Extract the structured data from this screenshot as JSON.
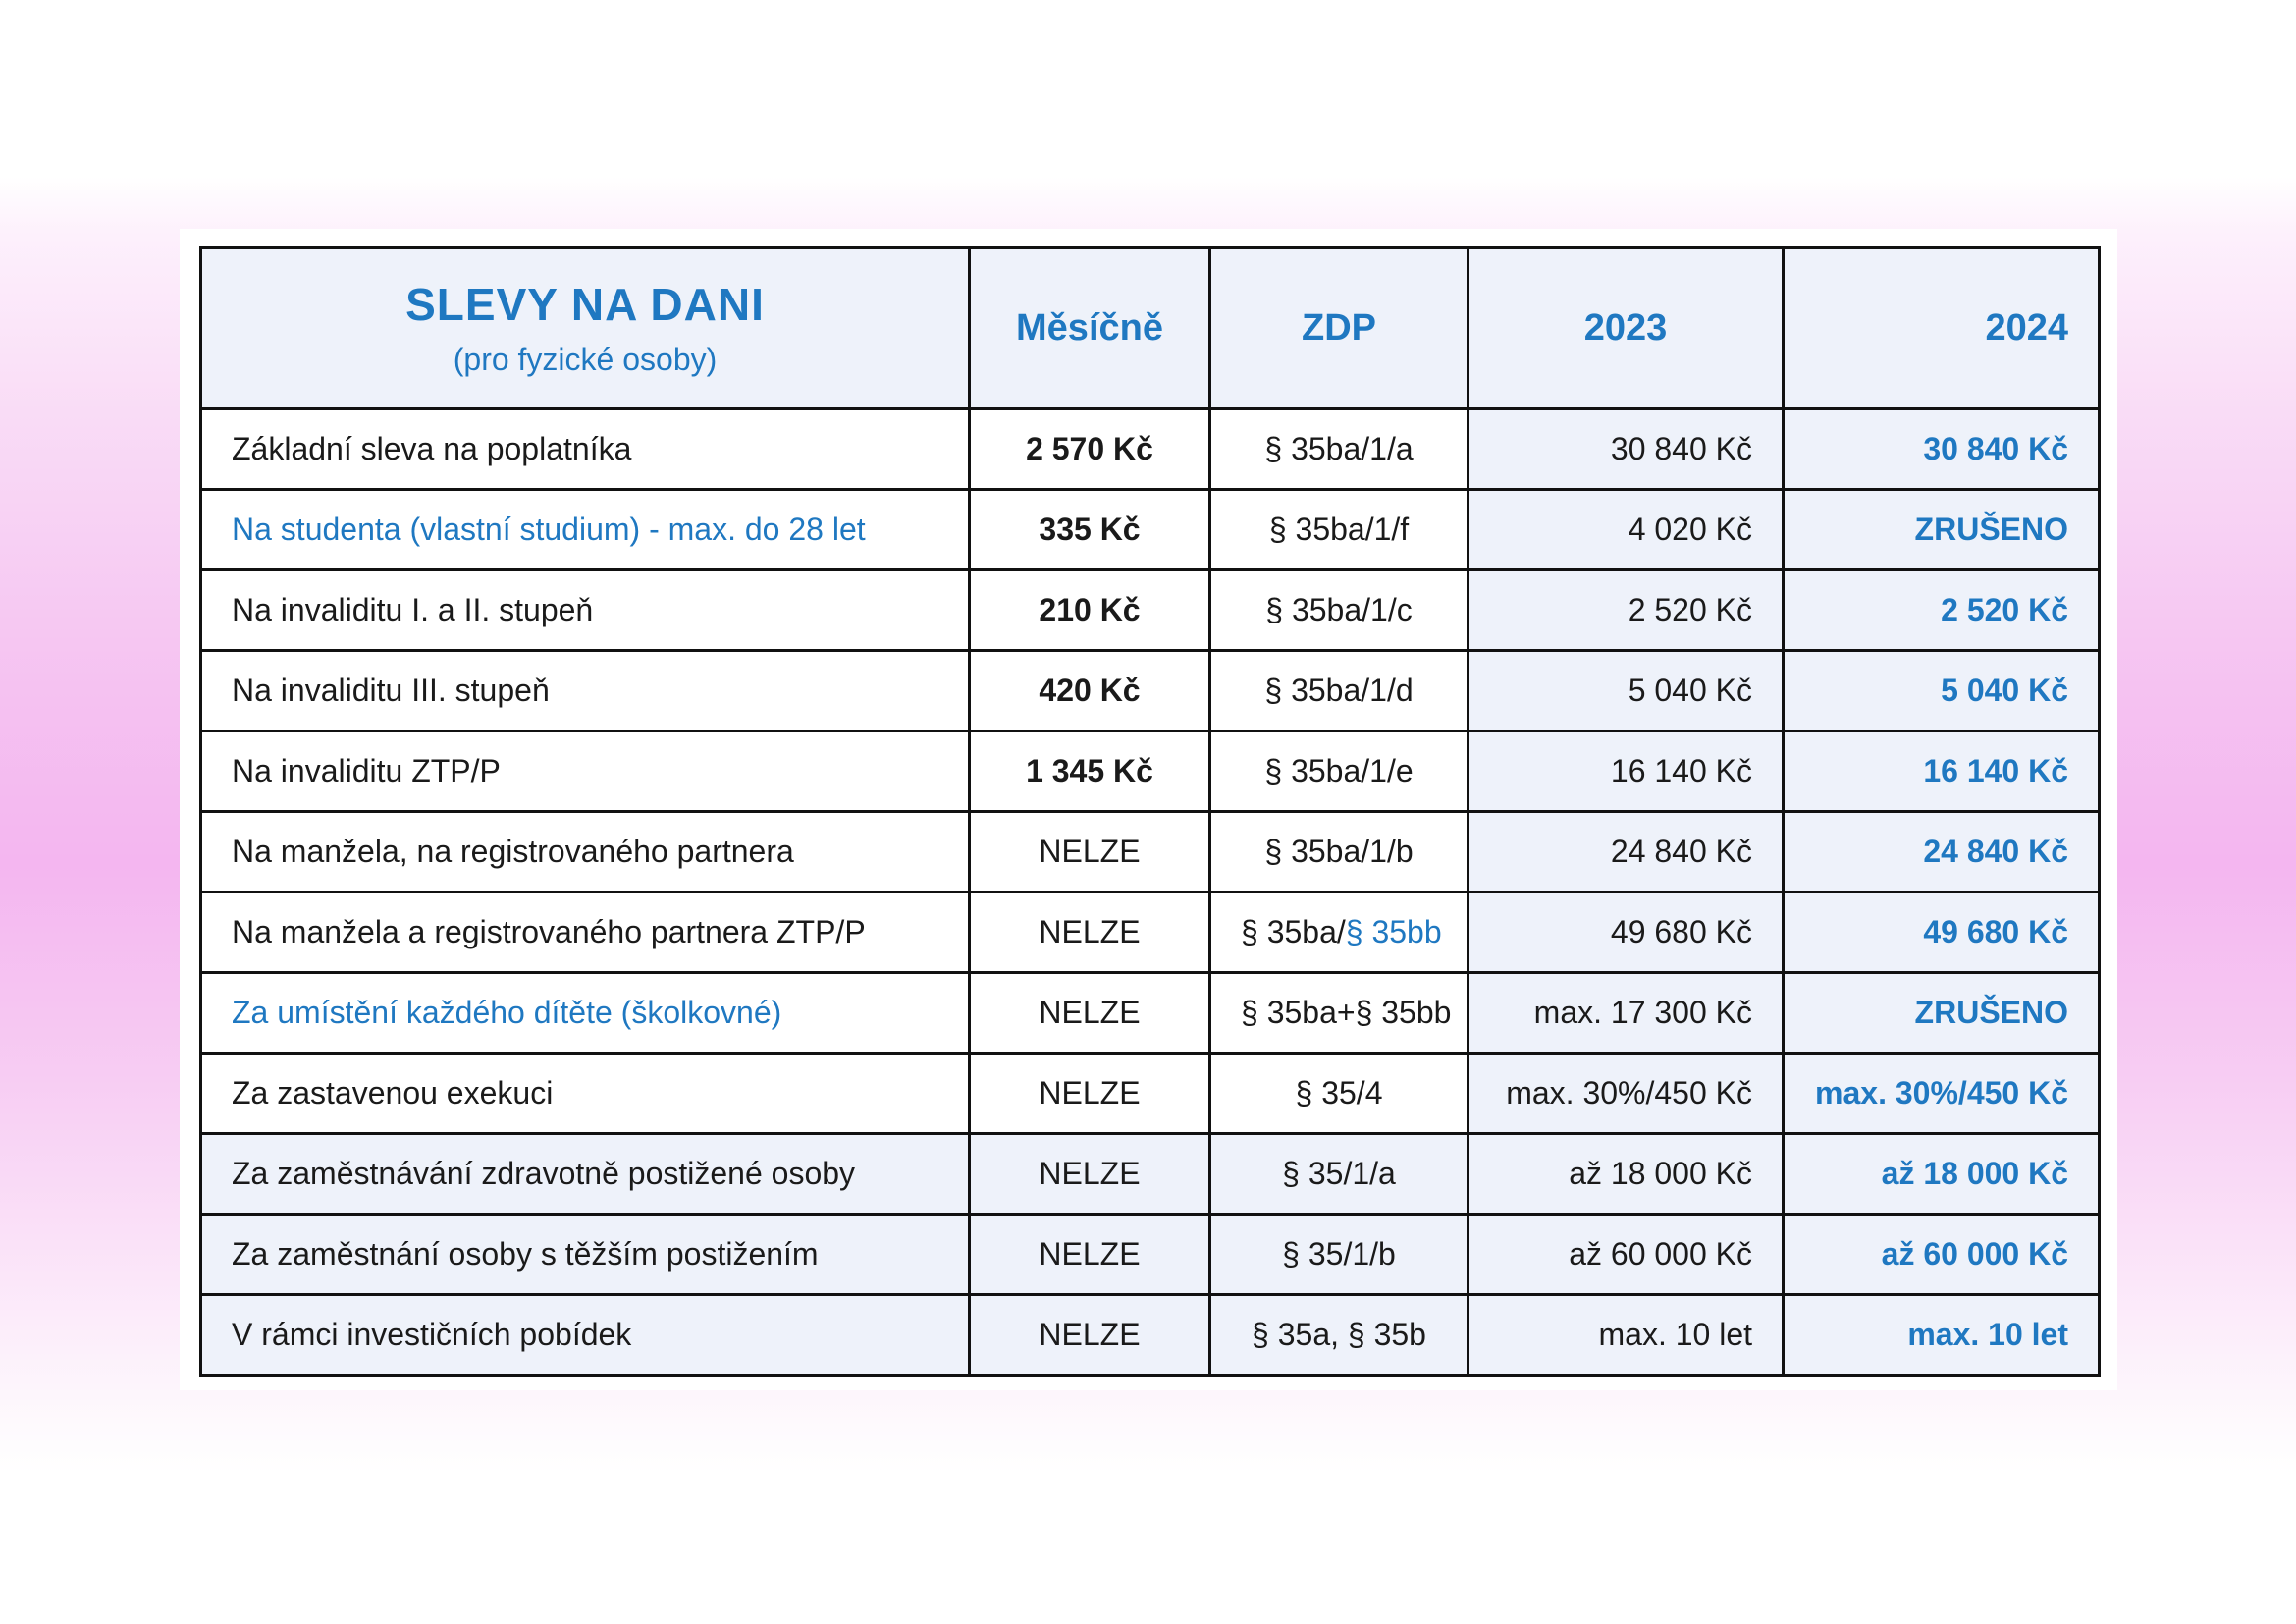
{
  "table": {
    "headers": {
      "title": "SLEVY NA DANI",
      "subtitle": "(pro fyzické osoby)",
      "monthly": "Měsíčně",
      "zdp": "ZDP",
      "y2023": "2023",
      "y2024": "2024"
    },
    "rows": [
      {
        "name": "Základní sleva na poplatníka",
        "monthly": "2 570 Kč",
        "zdp": "§ 35ba/1/a",
        "zdp_extra": "",
        "y2023": "30 840 Kč",
        "y2024": "30 840 Kč",
        "name_blue": false,
        "monthly_bold": true
      },
      {
        "name": "Na studenta (vlastní studium) - max. do 28 let",
        "monthly": "335 Kč",
        "zdp": "§ 35ba/1/f",
        "zdp_extra": "",
        "y2023": "4 020 Kč",
        "y2024": "ZRUŠENO",
        "name_blue": true,
        "monthly_bold": true
      },
      {
        "name": "Na invaliditu I. a II. stupeň",
        "monthly": "210 Kč",
        "zdp": "§ 35ba/1/c",
        "zdp_extra": "",
        "y2023": "2 520 Kč",
        "y2024": "2 520 Kč",
        "name_blue": false,
        "monthly_bold": true
      },
      {
        "name": "Na invaliditu III. stupeň",
        "monthly": "420 Kč",
        "zdp": "§ 35ba/1/d",
        "zdp_extra": "",
        "y2023": "5 040 Kč",
        "y2024": "5 040 Kč",
        "name_blue": false,
        "monthly_bold": true
      },
      {
        "name": "Na invaliditu ZTP/P",
        "monthly": "1 345 Kč",
        "zdp": "§ 35ba/1/e",
        "zdp_extra": "",
        "y2023": "16 140 Kč",
        "y2024": "16 140 Kč",
        "name_blue": false,
        "monthly_bold": true
      },
      {
        "name": "Na manžela, na registrovaného partnera",
        "monthly": "NELZE",
        "zdp": "§ 35ba/1/b",
        "zdp_extra": "",
        "y2023": "24 840 Kč",
        "y2024": "24 840 Kč",
        "name_blue": false,
        "monthly_bold": false
      },
      {
        "name": "Na manžela a registrovaného partnera ZTP/P",
        "monthly": "NELZE",
        "zdp": "§ 35ba/",
        "zdp_extra": "§ 35bb",
        "y2023": "49 680 Kč",
        "y2024": "49 680 Kč",
        "name_blue": false,
        "monthly_bold": false
      },
      {
        "name": "Za umístění každého dítěte (školkovné)",
        "monthly": "NELZE",
        "zdp": "§ 35ba+§ 35bb",
        "zdp_extra": "",
        "y2023": "max. 17 300 Kč",
        "y2024": "ZRUŠENO",
        "name_blue": true,
        "monthly_bold": false
      },
      {
        "name": "Za zastavenou exekuci",
        "monthly": "NELZE",
        "zdp": "§ 35/4",
        "zdp_extra": "",
        "y2023": "max. 30%/450 Kč",
        "y2024": "max. 30%/450 Kč",
        "name_blue": false,
        "monthly_bold": false
      },
      {
        "name": "Za zaměstnávání zdravotně postižené osoby",
        "monthly": "NELZE",
        "zdp": "§ 35/1/a",
        "zdp_extra": "",
        "y2023": "až 18 000 Kč",
        "y2024": "až 18 000 Kč",
        "name_blue": false,
        "monthly_bold": false,
        "shade": true
      },
      {
        "name": "Za zaměstnání osoby s těžším postižením",
        "monthly": "NELZE",
        "zdp": "§ 35/1/b",
        "zdp_extra": "",
        "y2023": "až 60 000 Kč",
        "y2024": "až 60 000 Kč",
        "name_blue": false,
        "monthly_bold": false,
        "shade": true
      },
      {
        "name": "V rámci investičních pobídek",
        "monthly": "NELZE",
        "zdp": "§ 35a, § 35b",
        "zdp_extra": "",
        "y2023": "max. 10 let",
        "y2024": "max. 10 let",
        "name_blue": false,
        "monthly_bold": false,
        "shade": true
      }
    ]
  },
  "colors": {
    "accent_blue": "#1f78c1",
    "cell_tint": "#eef2fa",
    "border": "#111111"
  }
}
